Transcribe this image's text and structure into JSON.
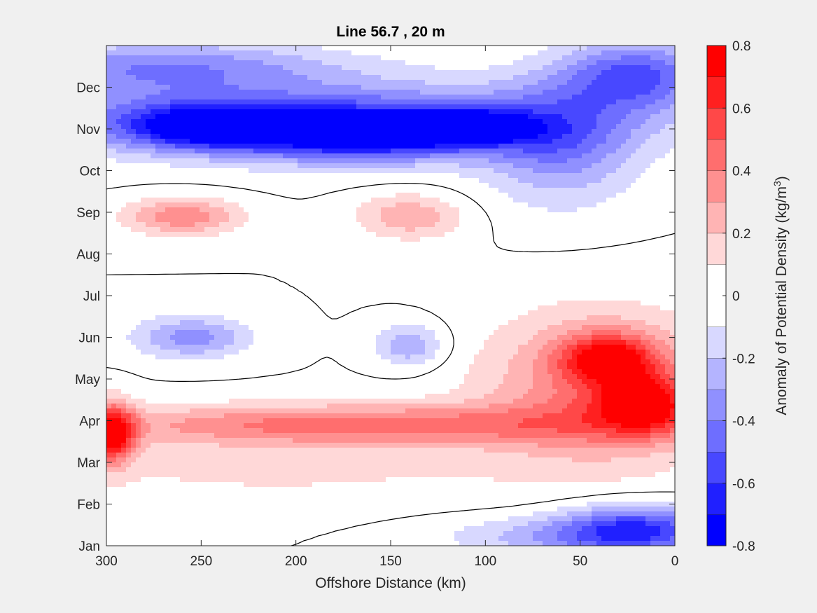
{
  "chart_data": {
    "type": "heatmap",
    "title": "Line 56.7 , 20 m",
    "xlabel": "Offshore Distance (km)",
    "xlim": [
      300,
      0
    ],
    "x_ticks": [
      300,
      250,
      200,
      150,
      100,
      50,
      0
    ],
    "x_tick_labels": [
      "300",
      "250",
      "200",
      "150",
      "100",
      "50",
      "0"
    ],
    "ylim": [
      1,
      13
    ],
    "y_ticks": [
      1,
      2,
      3,
      4,
      5,
      6,
      7,
      8,
      9,
      10,
      11,
      12
    ],
    "y_tick_labels": [
      "Jan",
      "Feb",
      "Mar",
      "Apr",
      "May",
      "Jun",
      "Jul",
      "Aug",
      "Sep",
      "Oct",
      "Nov",
      "Dec"
    ],
    "colorbar": {
      "label_prefix": "Anomaly of Potential Density (kg/m",
      "label_sup": "3",
      "label_suffix": ")",
      "range": [
        -0.8,
        0.8
      ],
      "ticks": [
        -0.8,
        -0.6,
        -0.4,
        -0.2,
        0,
        0.2,
        0.4,
        0.6,
        0.8
      ],
      "tick_labels": [
        "-0.8",
        "-0.6",
        "-0.4",
        "-0.2",
        "0",
        "0.2",
        "0.4",
        "0.6",
        "0.8"
      ],
      "levels": [
        -0.8,
        -0.7,
        -0.6,
        -0.5,
        -0.4,
        -0.3,
        -0.2,
        -0.1,
        0.1,
        0.2,
        0.3,
        0.4,
        0.5,
        0.6,
        0.7,
        0.8
      ],
      "colors": [
        "#0000ff",
        "#2020ff",
        "#4848ff",
        "#6e6eff",
        "#9090ff",
        "#b4b4ff",
        "#d8d8ff",
        "#ffffff",
        "#ffd8d8",
        "#ffb4b4",
        "#ff9090",
        "#ff6e6e",
        "#ff4848",
        "#ff2020",
        "#ff0000"
      ]
    },
    "zero_contour": true,
    "features": [
      {
        "x": 165,
        "y": 10.85,
        "value": -0.65,
        "rx": 70,
        "ry": 0.6
      },
      {
        "x": 110,
        "y": 11.05,
        "value": -0.6,
        "rx": 30,
        "ry": 0.35
      },
      {
        "x": 250,
        "y": 11.05,
        "value": -0.55,
        "rx": 40,
        "ry": 0.5
      },
      {
        "x": 20,
        "y": 12.3,
        "value": -0.5,
        "rx": 40,
        "ry": 0.8
      },
      {
        "x": 200,
        "y": 11.3,
        "value": -0.45,
        "rx": 170,
        "ry": 0.9
      },
      {
        "x": 60,
        "y": 10.6,
        "value": -0.35,
        "rx": 40,
        "ry": 1.4
      },
      {
        "x": 270,
        "y": 12.5,
        "value": -0.35,
        "rx": 90,
        "ry": 0.6
      },
      {
        "x": 260,
        "y": 8.9,
        "value": 0.38,
        "rx": 30,
        "ry": 0.45
      },
      {
        "x": 140,
        "y": 8.9,
        "value": 0.28,
        "rx": 28,
        "ry": 0.55
      },
      {
        "x": 255,
        "y": 6.0,
        "value": -0.35,
        "rx": 30,
        "ry": 0.5
      },
      {
        "x": 140,
        "y": 5.8,
        "value": -0.3,
        "rx": 18,
        "ry": 0.5
      },
      {
        "x": 170,
        "y": 3.9,
        "value": 0.45,
        "rx": 140,
        "ry": 0.5
      },
      {
        "x": 297,
        "y": 3.7,
        "value": 0.75,
        "rx": 12,
        "ry": 0.7
      },
      {
        "x": 35,
        "y": 5.5,
        "value": 0.55,
        "rx": 25,
        "ry": 0.6
      },
      {
        "x": 15,
        "y": 4.4,
        "value": 0.55,
        "rx": 25,
        "ry": 0.7
      },
      {
        "x": 40,
        "y": 4.8,
        "value": 0.4,
        "rx": 60,
        "ry": 1.8
      },
      {
        "x": 20,
        "y": 1.4,
        "value": -0.55,
        "rx": 40,
        "ry": 0.6
      },
      {
        "x": 60,
        "y": 1.2,
        "value": -0.25,
        "rx": 60,
        "ry": 0.5
      },
      {
        "x": 210,
        "y": 2.8,
        "value": 0.12,
        "rx": 150,
        "ry": 0.8
      }
    ]
  }
}
